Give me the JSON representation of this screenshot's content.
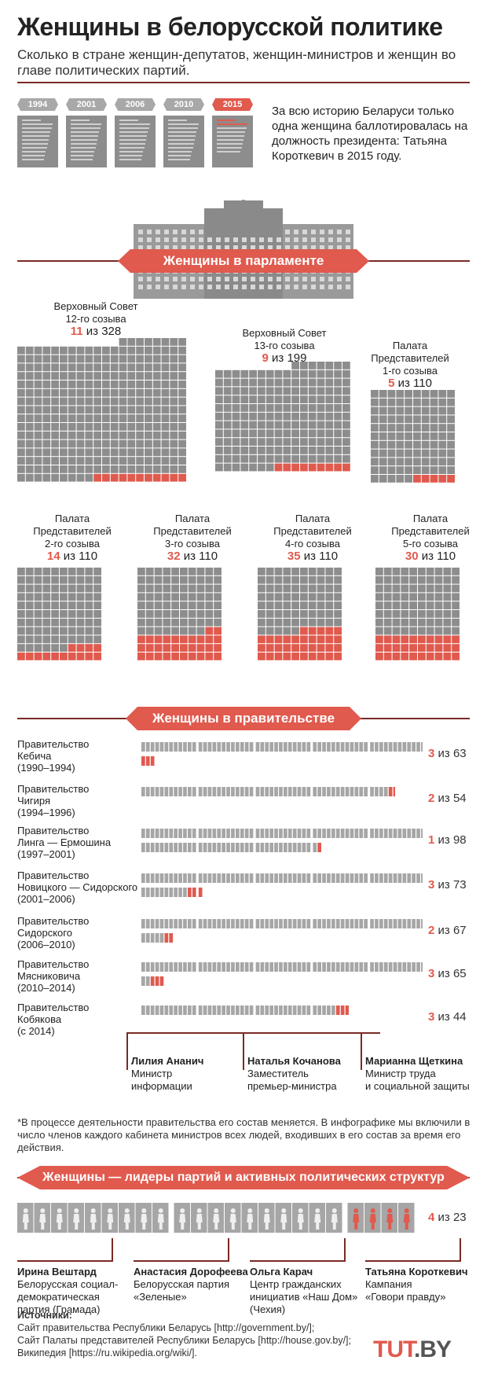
{
  "title": "Женщины в белорусской политике",
  "subtitle": "Сколько в стране женщин-депутатов, женщин-министров и женщин во главе политических партий.",
  "years": [
    "1994",
    "2001",
    "2006",
    "2010",
    "2015"
  ],
  "highlight_year_index": 4,
  "president_note": "За всю историю Беларуси только одна женщина баллотировалась на должность президента: Татьяна Короткевич в 2015 году.",
  "sections": {
    "parliament": "Женщины в парламенте",
    "government": "Женщины в правительстве",
    "parties": "Женщины — лидеры партий и активных политических структур"
  },
  "colors": {
    "accent": "#e05a4e",
    "grey": "#8d8d8d",
    "dark": "#7a2a25"
  },
  "chart_data": [
    {
      "type": "waffle",
      "title": "Женщины в парламенте",
      "series": [
        {
          "name_lines": [
            "Верховный Совет",
            "12-го созыва"
          ],
          "women": 11,
          "total": 328
        },
        {
          "name_lines": [
            "Верховный Совет",
            "13-го созыва"
          ],
          "women": 9,
          "total": 199
        },
        {
          "name_lines": [
            "Палата",
            "Представителей",
            "1-го созыва"
          ],
          "women": 5,
          "total": 110
        },
        {
          "name_lines": [
            "Палата",
            "Представителей",
            "2-го созыва"
          ],
          "women": 14,
          "total": 110
        },
        {
          "name_lines": [
            "Палата",
            "Представителей",
            "3-го созыва"
          ],
          "women": 32,
          "total": 110
        },
        {
          "name_lines": [
            "Палата",
            "Представителей",
            "4-го созыва"
          ],
          "women": 35,
          "total": 110
        },
        {
          "name_lines": [
            "Палата",
            "Представителей",
            "5-го созыва"
          ],
          "women": 30,
          "total": 110
        }
      ]
    },
    {
      "type": "waffle",
      "title": "Женщины в правительстве",
      "series": [
        {
          "name_lines": [
            "Правительство",
            "Кебича",
            "(1990–1994)"
          ],
          "women": 3,
          "total": 63
        },
        {
          "name_lines": [
            "Правительство",
            "Чигиря",
            "(1994–1996)"
          ],
          "women": 2,
          "total": 54
        },
        {
          "name_lines": [
            "Правительство",
            "Линга — Ермошина",
            "(1997–2001)"
          ],
          "women": 1,
          "total": 98
        },
        {
          "name_lines": [
            "Правительство",
            "Новицкого — Сидорского",
            "(2001–2006)"
          ],
          "women": 3,
          "total": 73
        },
        {
          "name_lines": [
            "Правительство",
            "Сидорского",
            "(2006–2010)"
          ],
          "women": 2,
          "total": 67
        },
        {
          "name_lines": [
            "Правительство",
            "Мясниковича",
            "(2010–2014)"
          ],
          "women": 3,
          "total": 65
        },
        {
          "name_lines": [
            "Правительство",
            "Кобякова",
            "(с 2014)"
          ],
          "women": 3,
          "total": 44
        }
      ]
    },
    {
      "type": "waffle",
      "title": "Женщины — лидеры партий и активных политических структур",
      "series": [
        {
          "women": 4,
          "total": 23
        }
      ]
    }
  ],
  "count_sep": "из",
  "ministers": [
    {
      "name": "Лилия Ананич",
      "role_lines": [
        "Министр",
        "информации"
      ]
    },
    {
      "name": "Наталья Кочанова",
      "role_lines": [
        "Заместитель",
        "премьер-министра"
      ]
    },
    {
      "name": "Марианна Щеткина",
      "role_lines": [
        "Министр труда",
        "и социальной защиты"
      ]
    }
  ],
  "footnote": "*В процессе деятельности правительства его состав меняется. В инфографике мы включили в число членов каждого кабинета министров всех людей, входивших в его состав за время его действия.",
  "party_leaders": [
    {
      "name": "Ирина Вештард",
      "role_lines": [
        "Белорусская социал-",
        "демократическая",
        "партия (Грамада)"
      ]
    },
    {
      "name": "Анастасия Дорофеева",
      "role_lines": [
        "Белорусская партия",
        "«Зеленые»"
      ]
    },
    {
      "name": "Ольга Карач",
      "role_lines": [
        "Центр гражданских",
        "инициатив «Наш Дом»",
        "(Чехия)"
      ]
    },
    {
      "name": "Татьяна Короткевич",
      "role_lines": [
        "Кампания",
        "«Говори правду»"
      ]
    }
  ],
  "sources_title": "Источники:",
  "sources": [
    "Сайт правительства Республики Беларусь [http://government.by/];",
    "Сайт Палаты представителей Республики Беларусь [http://house.gov.by/];",
    "Википедия [https://ru.wikipedia.org/wiki/]."
  ],
  "logo": {
    "left": "TUT",
    "right": ".BY"
  }
}
